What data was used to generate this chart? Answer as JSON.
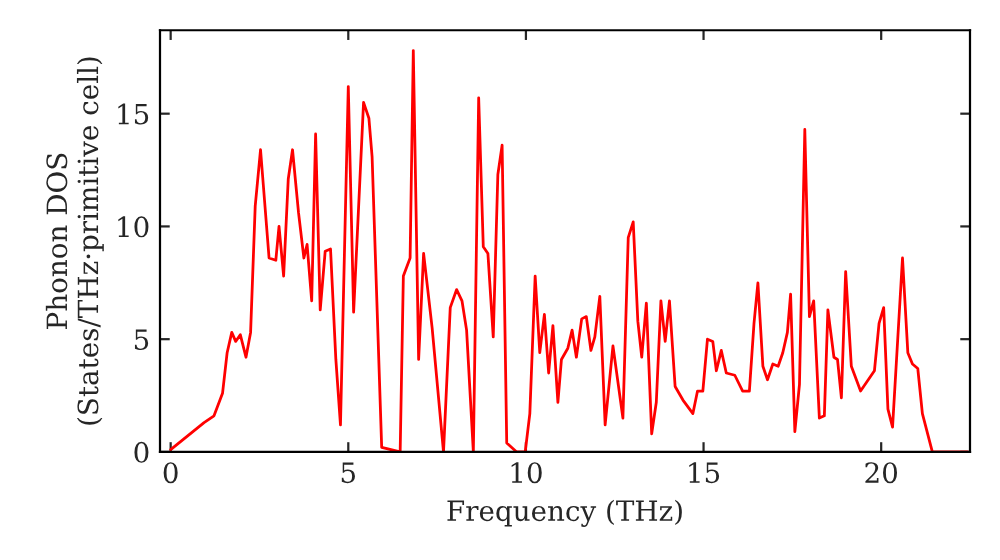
{
  "chart_data": {
    "type": "line",
    "xlabel": "Frequency (THz)",
    "ylabel": "Phonon DOS\n(States/THz·primitive cell)",
    "xlim": [
      -0.3,
      22.5
    ],
    "ylim": [
      0,
      18.7
    ],
    "xticks": [
      0,
      5,
      10,
      15,
      20
    ],
    "yticks": [
      0,
      5,
      10,
      15
    ],
    "marker": "none",
    "line_style": "solid",
    "series": [
      {
        "color": "#ff0000",
        "x": [
          0,
          0.94,
          1.22,
          1.46,
          1.59,
          1.72,
          1.83,
          1.96,
          2.12,
          2.25,
          2.38,
          2.53,
          2.77,
          2.96,
          3.05,
          3.18,
          3.31,
          3.43,
          3.6,
          3.75,
          3.84,
          3.97,
          4.08,
          4.21,
          4.35,
          4.5,
          4.65,
          4.78,
          5.0,
          5.15,
          5.43,
          5.58,
          5.67,
          5.94,
          6.46,
          6.55,
          6.74,
          6.83,
          6.98,
          7.12,
          7.36,
          7.68,
          7.87,
          8.05,
          8.2,
          8.33,
          8.52,
          8.67,
          8.8,
          8.93,
          9.08,
          9.21,
          9.33,
          9.46,
          9.74,
          9.98,
          10.11,
          10.26,
          10.39,
          10.52,
          10.64,
          10.76,
          10.9,
          11.0,
          11.18,
          11.3,
          11.42,
          11.57,
          11.7,
          11.83,
          11.94,
          12.08,
          12.23,
          12.45,
          12.73,
          12.88,
          13.02,
          13.15,
          13.26,
          13.39,
          13.54,
          13.67,
          13.8,
          13.92,
          14.04,
          14.2,
          14.42,
          14.7,
          14.83,
          14.98,
          15.11,
          15.26,
          15.36,
          15.5,
          15.64,
          15.88,
          16.1,
          16.29,
          16.42,
          16.53,
          16.67,
          16.8,
          16.95,
          17.1,
          17.23,
          17.36,
          17.45,
          17.57,
          17.7,
          17.85,
          17.98,
          18.1,
          18.26,
          18.4,
          18.5,
          18.67,
          18.77,
          18.88,
          19.0,
          19.16,
          19.42,
          19.81,
          19.94,
          20.07,
          20.19,
          20.32,
          20.6,
          20.75,
          20.88,
          21.03,
          21.16,
          21.44,
          22.43
        ],
        "values": [
          0.1,
          1.3,
          1.6,
          2.6,
          4.4,
          5.3,
          4.9,
          5.2,
          4.2,
          5.3,
          10.9,
          13.4,
          8.6,
          8.5,
          10.0,
          7.8,
          12.1,
          13.4,
          10.6,
          8.6,
          9.2,
          6.7,
          14.1,
          6.3,
          8.9,
          9.0,
          4.1,
          1.2,
          16.2,
          6.2,
          15.5,
          14.8,
          13.1,
          0.2,
          0,
          7.8,
          8.6,
          17.8,
          4.1,
          8.8,
          5.5,
          0,
          6.4,
          7.2,
          6.7,
          5.4,
          0,
          15.7,
          9.1,
          8.8,
          5.1,
          12.3,
          13.6,
          0.4,
          0,
          0,
          1.7,
          7.8,
          4.4,
          6.1,
          3.5,
          5.6,
          2.2,
          4.1,
          4.6,
          5.4,
          4.2,
          5.9,
          6.0,
          4.5,
          5.1,
          6.9,
          1.2,
          4.7,
          1.5,
          9.5,
          10.2,
          5.8,
          4.2,
          6.6,
          0.8,
          2.2,
          6.7,
          4.9,
          6.7,
          2.9,
          2.3,
          1.7,
          2.7,
          2.7,
          5.0,
          4.9,
          3.6,
          4.5,
          3.5,
          3.4,
          2.7,
          2.7,
          5.7,
          7.5,
          3.8,
          3.2,
          3.9,
          3.8,
          4.4,
          5.3,
          7.0,
          0.9,
          3.0,
          14.3,
          6.0,
          6.7,
          1.5,
          1.6,
          6.3,
          4.2,
          4.1,
          2.4,
          8.0,
          3.8,
          2.7,
          3.6,
          5.7,
          6.4,
          1.9,
          1.1,
          8.6,
          4.4,
          3.9,
          3.7,
          1.7,
          0,
          0
        ]
      }
    ]
  }
}
